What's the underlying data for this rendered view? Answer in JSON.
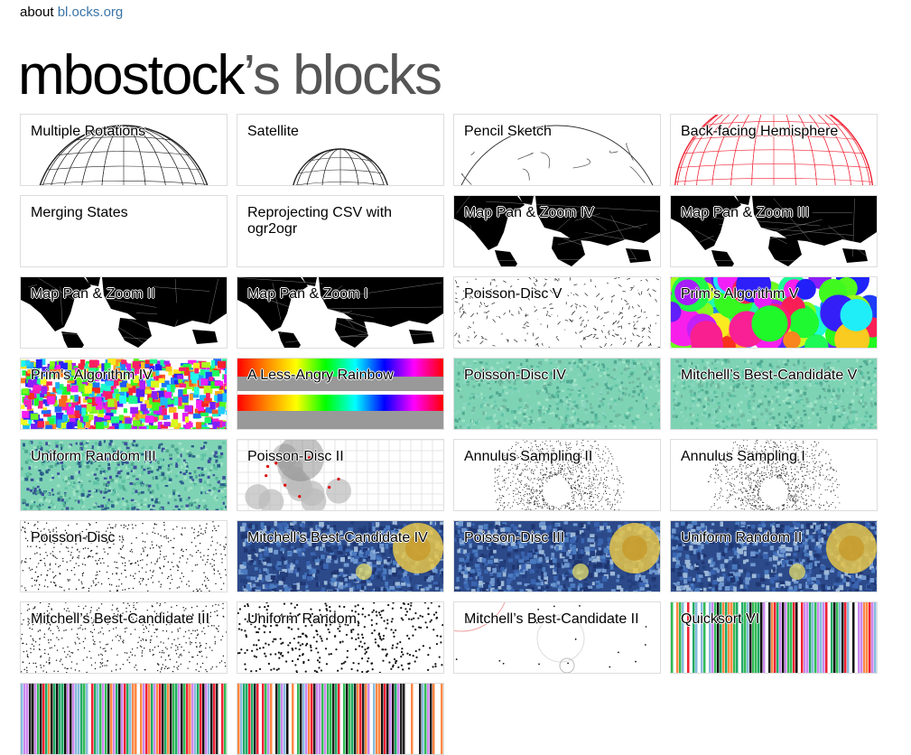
{
  "header": {
    "about_prefix": "about",
    "about_link": "bl.ocks.org",
    "title_owner": "mbostock",
    "title_rest": "’s blocks"
  },
  "blocks": [
    {
      "label": "Multiple Rotations",
      "thumb": "globe-black"
    },
    {
      "label": "Satellite",
      "thumb": "globe-small"
    },
    {
      "label": "Pencil Sketch",
      "thumb": "globe-sketch"
    },
    {
      "label": "Back-facing Hemisphere",
      "thumb": "globe-red"
    },
    {
      "label": "Merging States",
      "thumb": "blank"
    },
    {
      "label": "Reprojecting CSV with ogr2ogr",
      "thumb": "blank"
    },
    {
      "label": "Map Pan & Zoom IV",
      "thumb": "worldmap"
    },
    {
      "label": "Map Pan & Zoom III",
      "thumb": "worldmap"
    },
    {
      "label": "Map Pan & Zoom II",
      "thumb": "worldmap"
    },
    {
      "label": "Map Pan & Zoom I",
      "thumb": "worldmap"
    },
    {
      "label": "Poisson-Disc V",
      "thumb": "branches"
    },
    {
      "label": "Prim’s Algorithm V",
      "thumb": "rainbow-blobs"
    },
    {
      "label": "Prim’s Algorithm IV",
      "thumb": "rainbow-noise"
    },
    {
      "label": "A Less-Angry Rainbow",
      "thumb": "rainbow-bars"
    },
    {
      "label": "Poisson-Disc IV",
      "thumb": "teal-noise"
    },
    {
      "label": "Mitchell’s Best-Candidate V",
      "thumb": "teal-noise"
    },
    {
      "label": "Uniform Random III",
      "thumb": "teal-dark"
    },
    {
      "label": "Poisson-Disc II",
      "thumb": "poisson-grid"
    },
    {
      "label": "Annulus Sampling II",
      "thumb": "annulus"
    },
    {
      "label": "Annulus Sampling I",
      "thumb": "annulus"
    },
    {
      "label": "Poisson-Disc",
      "thumb": "dots-fine"
    },
    {
      "label": "Mitchell’s Best-Candidate IV",
      "thumb": "starry"
    },
    {
      "label": "Poisson-Disc III",
      "thumb": "starry"
    },
    {
      "label": "Uniform Random II",
      "thumb": "starry"
    },
    {
      "label": "Mitchell’s Best-Candidate III",
      "thumb": "dots-fine"
    },
    {
      "label": "Uniform Random",
      "thumb": "dots-coarse"
    },
    {
      "label": "Mitchell’s Best-Candidate II",
      "thumb": "circles"
    },
    {
      "label": "Quicksort VI",
      "thumb": "stripes"
    },
    {
      "label": "",
      "thumb": "stripes"
    },
    {
      "label": "",
      "thumb": "stripes"
    }
  ]
}
